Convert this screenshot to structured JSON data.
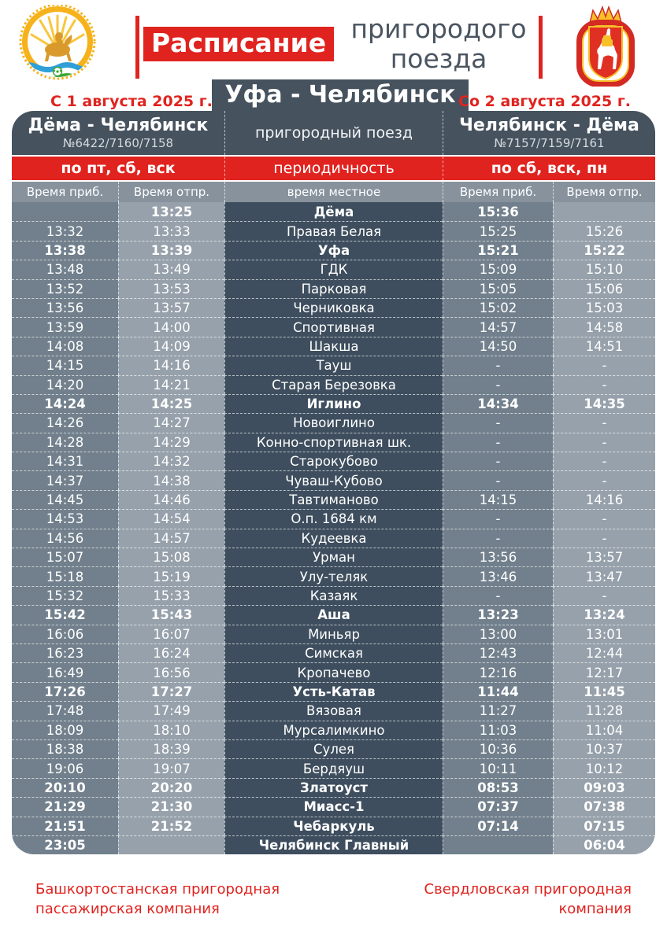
{
  "header": {
    "title_highlight": "Расписание",
    "title_rest": "пригородого поезда",
    "subtitle": "Уфа - Челябинск"
  },
  "dates": {
    "left": "С 1 августа 2025 г.",
    "right": "Со 2 августа 2025 г."
  },
  "table": {
    "forward": {
      "title": "Дёма - Челябинск",
      "trains": "№6422/7160/7158",
      "days": "по пт, сб, вск"
    },
    "middle": {
      "train_type": "пригородный поезд",
      "periodicity_label": "периодичность",
      "time_note": "время местное"
    },
    "backward": {
      "title": "Челябинск - Дёма",
      "trains": "№7157/7159/7161",
      "days": "по сб, вск, пн"
    },
    "columns": [
      "Время приб.",
      "Время отпр.",
      "время местное",
      "Время приб.",
      "Время отпр."
    ],
    "rows": [
      {
        "station": "Дёма",
        "arr1": "",
        "dep1": "13:25",
        "arr2": "15:36",
        "dep2": "",
        "bold": true
      },
      {
        "station": "Правая Белая",
        "arr1": "13:32",
        "dep1": "13:33",
        "arr2": "15:25",
        "dep2": "15:26"
      },
      {
        "station": "Уфа",
        "arr1": "13:38",
        "dep1": "13:39",
        "arr2": "15:21",
        "dep2": "15:22",
        "bold": true
      },
      {
        "station": "ГДК",
        "arr1": "13:48",
        "dep1": "13:49",
        "arr2": "15:09",
        "dep2": "15:10"
      },
      {
        "station": "Парковая",
        "arr1": "13:52",
        "dep1": "13:53",
        "arr2": "15:05",
        "dep2": "15:06"
      },
      {
        "station": "Черниковка",
        "arr1": "13:56",
        "dep1": "13:57",
        "arr2": "15:02",
        "dep2": "15:03"
      },
      {
        "station": "Спортивная",
        "arr1": "13:59",
        "dep1": "14:00",
        "arr2": "14:57",
        "dep2": "14:58"
      },
      {
        "station": "Шакша",
        "arr1": "14:08",
        "dep1": "14:09",
        "arr2": "14:50",
        "dep2": "14:51"
      },
      {
        "station": "Тауш",
        "arr1": "14:15",
        "dep1": "14:16",
        "arr2": "-",
        "dep2": "-"
      },
      {
        "station": "Старая Березовка",
        "arr1": "14:20",
        "dep1": "14:21",
        "arr2": "-",
        "dep2": "-"
      },
      {
        "station": "Иглино",
        "arr1": "14:24",
        "dep1": "14:25",
        "arr2": "14:34",
        "dep2": "14:35",
        "bold": true
      },
      {
        "station": "Новоиглино",
        "arr1": "14:26",
        "dep1": "14:27",
        "arr2": "-",
        "dep2": "-"
      },
      {
        "station": "Конно-спортивная шк.",
        "arr1": "14:28",
        "dep1": "14:29",
        "arr2": "-",
        "dep2": "-"
      },
      {
        "station": "Старокубово",
        "arr1": "14:31",
        "dep1": "14:32",
        "arr2": "-",
        "dep2": "-"
      },
      {
        "station": "Чуваш-Кубово",
        "arr1": "14:37",
        "dep1": "14:38",
        "arr2": "-",
        "dep2": "-"
      },
      {
        "station": "Тавтиманово",
        "arr1": "14:45",
        "dep1": "14:46",
        "arr2": "14:15",
        "dep2": "14:16"
      },
      {
        "station": "О.п. 1684 км",
        "arr1": "14:53",
        "dep1": "14:54",
        "arr2": "-",
        "dep2": "-"
      },
      {
        "station": "Кудеевка",
        "arr1": "14:56",
        "dep1": "14:57",
        "arr2": "-",
        "dep2": "-"
      },
      {
        "station": "Урман",
        "arr1": "15:07",
        "dep1": "15:08",
        "arr2": "13:56",
        "dep2": "13:57"
      },
      {
        "station": "Улу-теляк",
        "arr1": "15:18",
        "dep1": "15:19",
        "arr2": "13:46",
        "dep2": "13:47"
      },
      {
        "station": "Казаяк",
        "arr1": "15:32",
        "dep1": "15:33",
        "arr2": "-",
        "dep2": "-"
      },
      {
        "station": "Аша",
        "arr1": "15:42",
        "dep1": "15:43",
        "arr2": "13:23",
        "dep2": "13:24",
        "bold": true
      },
      {
        "station": "Миньяр",
        "arr1": "16:06",
        "dep1": "16:07",
        "arr2": "13:00",
        "dep2": "13:01"
      },
      {
        "station": "Симская",
        "arr1": "16:23",
        "dep1": "16:24",
        "arr2": "12:43",
        "dep2": "12:44"
      },
      {
        "station": "Кропачево",
        "arr1": "16:49",
        "dep1": "16:56",
        "arr2": "12:16",
        "dep2": "12:17"
      },
      {
        "station": "Усть-Катав",
        "arr1": "17:26",
        "dep1": "17:27",
        "arr2": "11:44",
        "dep2": "11:45",
        "bold": true
      },
      {
        "station": "Вязовая",
        "arr1": "17:48",
        "dep1": "17:49",
        "arr2": "11:27",
        "dep2": "11:28"
      },
      {
        "station": "Мурсалимкино",
        "arr1": "18:09",
        "dep1": "18:10",
        "arr2": "11:03",
        "dep2": "11:04"
      },
      {
        "station": "Сулея",
        "arr1": "18:38",
        "dep1": "18:39",
        "arr2": "10:36",
        "dep2": "10:37"
      },
      {
        "station": "Бердяуш",
        "arr1": "19:06",
        "dep1": "19:07",
        "arr2": "10:11",
        "dep2": "10:12"
      },
      {
        "station": "Златоуст",
        "arr1": "20:10",
        "dep1": "20:20",
        "arr2": "08:53",
        "dep2": "09:03",
        "bold": true
      },
      {
        "station": "Миасс-1",
        "arr1": "21:29",
        "dep1": "21:30",
        "arr2": "07:37",
        "dep2": "07:38",
        "bold": true
      },
      {
        "station": "Чебаркуль",
        "arr1": "21:51",
        "dep1": "21:52",
        "arr2": "07:14",
        "dep2": "07:15",
        "bold": true
      },
      {
        "station": "Челябинск Главный",
        "arr1": "23:05",
        "dep1": "",
        "arr2": "",
        "dep2": "06:04",
        "bold": true
      }
    ]
  },
  "footer": {
    "left": "Башкортостанская пригородная пассажирская компания",
    "right": "Свердловская пригородная компания"
  },
  "colors": {
    "red": "#e0231f",
    "header_dark": "#46525e",
    "station_column": "#3e4e5e",
    "arrival_column": "#71808c",
    "departure_column": "#97a1ab",
    "subheader": "#87929d"
  }
}
